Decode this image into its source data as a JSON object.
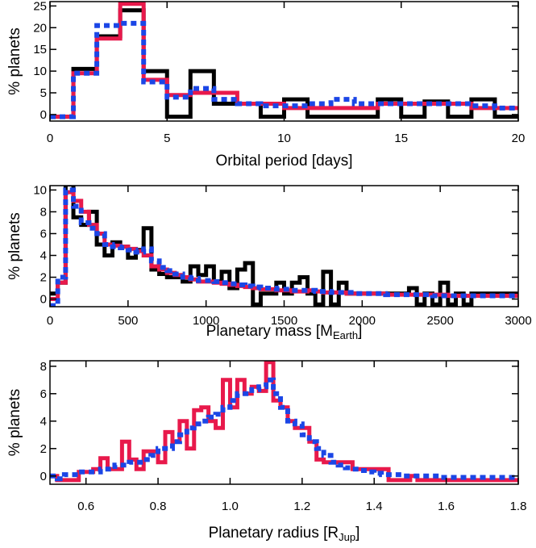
{
  "chart_data": [
    {
      "type": "histogram",
      "xlabel": "Orbital period [days]",
      "ylabel": "% planets",
      "xlim": [
        0,
        20
      ],
      "ylim": [
        -1.5,
        26
      ],
      "x_ticks": [
        0,
        5,
        10,
        15,
        20
      ],
      "y_ticks": [
        0,
        5,
        10,
        15,
        20,
        25
      ],
      "bin_edges": [
        0,
        1,
        2,
        3,
        4,
        5,
        6,
        7,
        8,
        9,
        10,
        11,
        12,
        13,
        14,
        15,
        16,
        17,
        18,
        19,
        20
      ],
      "series": [
        {
          "name": "black",
          "color": "#000000",
          "style": "solid",
          "values": [
            -0.5,
            10.5,
            18,
            24,
            10,
            -0.5,
            10,
            2.5,
            2.5,
            -0.5,
            3.5,
            -0.5,
            -0.5,
            -0.5,
            3.5,
            -0.5,
            3,
            -0.5,
            3.5,
            -0.5
          ]
        },
        {
          "name": "red",
          "color": "#e8194b",
          "style": "solid",
          "values": [
            -0.5,
            9.5,
            17.5,
            25.5,
            8,
            4.5,
            5,
            5,
            2.5,
            2.5,
            1.5,
            1.5,
            1.5,
            1.5,
            2.5,
            2.5,
            2.5,
            2.5,
            1.5,
            1.5
          ]
        },
        {
          "name": "blue",
          "color": "#1b46e6",
          "style": "dotted",
          "values": [
            -0.5,
            9.5,
            20.5,
            21,
            7.5,
            4,
            6,
            3.5,
            2.5,
            2,
            2,
            2.5,
            3.5,
            2.5,
            2.5,
            2.5,
            2.5,
            2.5,
            2,
            1.5
          ]
        }
      ]
    },
    {
      "type": "histogram",
      "xlabel_main": "Planetary mass [M",
      "xlabel_sub": "Earth",
      "xlabel_end": "]",
      "ylabel": "% planets",
      "xlim": [
        0,
        3000
      ],
      "ylim": [
        -0.7,
        10.4
      ],
      "x_ticks": [
        0,
        500,
        1000,
        1500,
        2000,
        2500,
        3000
      ],
      "y_ticks": [
        0,
        2,
        4,
        6,
        8,
        10
      ],
      "bin_edges": [
        0,
        50,
        100,
        150,
        200,
        250,
        300,
        350,
        400,
        450,
        500,
        550,
        600,
        650,
        700,
        750,
        800,
        850,
        900,
        950,
        1000,
        1050,
        1100,
        1150,
        1200,
        1250,
        1300,
        1350,
        1400,
        1450,
        1500,
        1550,
        1600,
        1650,
        1700,
        1750,
        1800,
        1850,
        1900,
        1950,
        2000,
        2050,
        2100,
        2150,
        2200,
        2250,
        2300,
        2350,
        2400,
        2450,
        2500,
        2550,
        2600,
        2650,
        2700,
        2750,
        2800,
        2850,
        2900,
        2950,
        3000
      ],
      "series": [
        {
          "name": "black",
          "color": "#000000",
          "style": "solid",
          "values": [
            0.5,
            1.5,
            10.5,
            7.5,
            6.8,
            8,
            5,
            4,
            5.2,
            4.8,
            3.8,
            4.5,
            6.5,
            2.7,
            2.3,
            2,
            2,
            1.6,
            3,
            2.2,
            3,
            1.6,
            2.5,
            1,
            2.7,
            3.3,
            -0.5,
            0.5,
            0.5,
            1.5,
            0.5,
            1.5,
            2,
            0.5,
            -0.5,
            2.5,
            -0.5,
            1.5,
            0.5,
            0.5,
            0.5,
            0.5,
            0.5,
            0.5,
            0.5,
            0.5,
            1,
            -0.5,
            0.5,
            -0.5,
            1.5,
            -0.5,
            0.5,
            -0.5,
            0.5,
            0.5,
            0.5,
            0.5,
            0.5,
            0.5
          ]
        },
        {
          "name": "red",
          "color": "#e8194b",
          "style": "solid",
          "values": [
            0,
            1.5,
            9.8,
            9,
            8,
            6.8,
            6,
            5,
            4.9,
            4.8,
            4.6,
            4.4,
            4,
            3,
            2.7,
            2.4,
            2.2,
            2,
            1.8,
            1.6,
            1.6,
            1.5,
            1.4,
            1.3,
            1.2,
            1.1,
            1,
            0.9,
            0.9,
            0.8,
            0.8,
            0.7,
            0.7,
            0.8,
            0.7,
            0.6,
            0.6,
            0.6,
            0.5,
            0.5,
            0.5,
            0.5,
            0.5,
            0.4,
            0.4,
            0.4,
            0.4,
            0.4,
            0.4,
            0.4,
            0.4,
            0.3,
            0.3,
            0.3,
            0.3,
            0.3,
            0.3,
            0.3,
            0.3,
            0.3
          ]
        },
        {
          "name": "blue",
          "color": "#1b46e6",
          "style": "dotted",
          "values": [
            -0.6,
            2,
            10,
            8.5,
            7,
            6.5,
            6,
            5,
            4.8,
            4.7,
            4.5,
            4.3,
            4.6,
            3.5,
            2.9,
            2.6,
            2.3,
            2,
            1.9,
            1.7,
            1.7,
            1.6,
            1.5,
            1.4,
            1.3,
            1.2,
            1.1,
            1,
            1,
            0.9,
            0.9,
            0.8,
            0.8,
            0.8,
            0.7,
            0.7,
            0.6,
            0.6,
            0.6,
            0.5,
            0.5,
            0.5,
            0.5,
            0.4,
            0.4,
            0.4,
            0.4,
            0.4,
            0.4,
            0.3,
            0.3,
            0.3,
            0.3,
            0.3,
            0.3,
            0.3,
            0.3,
            0.3,
            0.3,
            0.3
          ]
        }
      ]
    },
    {
      "type": "histogram",
      "xlabel_main": "Planetary radius [R",
      "xlabel_sub": "Jup",
      "xlabel_end": "]",
      "ylabel": "% planets",
      "xlim": [
        0.5,
        1.8
      ],
      "ylim": [
        -0.6,
        8.4
      ],
      "x_ticks": [
        0.6,
        0.8,
        1.0,
        1.2,
        1.4,
        1.6,
        1.8
      ],
      "x_tick_labels": [
        "0.6",
        "0.8",
        "1.0",
        "1.2",
        "1.4",
        "1.6",
        "1.8"
      ],
      "y_ticks": [
        0,
        2,
        4,
        6,
        8
      ],
      "bin_edges": [
        0.5,
        0.52,
        0.54,
        0.56,
        0.58,
        0.6,
        0.62,
        0.64,
        0.66,
        0.68,
        0.7,
        0.72,
        0.74,
        0.76,
        0.78,
        0.8,
        0.82,
        0.84,
        0.86,
        0.88,
        0.9,
        0.92,
        0.94,
        0.96,
        0.98,
        1.0,
        1.02,
        1.04,
        1.06,
        1.08,
        1.1,
        1.12,
        1.14,
        1.16,
        1.18,
        1.2,
        1.22,
        1.24,
        1.26,
        1.28,
        1.3,
        1.32,
        1.34,
        1.36,
        1.38,
        1.4,
        1.42,
        1.44,
        1.46,
        1.48,
        1.5,
        1.52,
        1.54,
        1.56,
        1.58,
        1.6,
        1.62,
        1.64,
        1.66,
        1.68,
        1.7,
        1.72,
        1.74,
        1.76,
        1.78,
        1.8
      ],
      "series": [
        {
          "name": "red",
          "color": "#e8194b",
          "style": "solid",
          "values": [
            0,
            -0.3,
            -0.3,
            -0.3,
            0.3,
            0.3,
            0.5,
            1.3,
            0.5,
            0.5,
            2.5,
            1.2,
            0.5,
            1.8,
            1.8,
            1,
            3.2,
            2.5,
            4,
            2,
            4.8,
            5,
            4,
            3.5,
            7,
            5,
            7,
            6,
            6.5,
            6.2,
            8.3,
            5.5,
            5,
            4,
            3.5,
            3.5,
            2.5,
            1.2,
            1,
            1,
            1,
            1,
            0.5,
            0.5,
            0.5,
            0.5,
            0.5,
            -0.3,
            -0.3,
            -0.3,
            0,
            -0.3,
            -0.3,
            -0.3,
            -0.3,
            -0.3,
            -0.3,
            -0.3,
            -0.3,
            -0.3,
            -0.3,
            -0.3,
            -0.3,
            -0.3,
            -0.3
          ]
        },
        {
          "name": "blue",
          "color": "#1b46e6",
          "style": "dotted",
          "values": [
            0,
            -0.2,
            0.1,
            0.1,
            0.3,
            0.3,
            0.3,
            0.5,
            0.5,
            0.8,
            0.8,
            1,
            1,
            1.2,
            1.5,
            2,
            2,
            2.5,
            3,
            3.5,
            3.8,
            4,
            4.3,
            4.5,
            5,
            5.5,
            6,
            6,
            6.3,
            6.5,
            7,
            6,
            5,
            4,
            3.8,
            3,
            2.5,
            2,
            1.5,
            1,
            0.8,
            0.6,
            0.5,
            0.4,
            0.3,
            0.2,
            0.1,
            0.1,
            0.1,
            0,
            0,
            0,
            0,
            0,
            -0.1,
            -0.1,
            -0.1,
            -0.1,
            -0.1,
            -0.1,
            -0.1,
            -0.1,
            -0.1,
            -0.1,
            -0.1
          ]
        }
      ]
    }
  ]
}
